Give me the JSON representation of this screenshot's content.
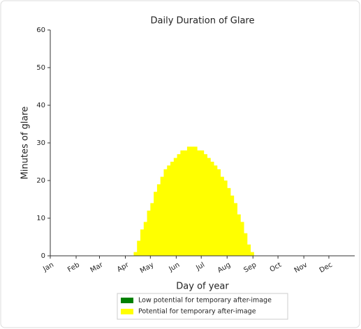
{
  "chart_data": {
    "type": "histogram",
    "title": "Daily Duration of Glare",
    "xlabel": "Day of year",
    "ylabel": "Minutes of glare",
    "xlim": [
      0,
      365
    ],
    "ylim": [
      0,
      60
    ],
    "yticks": [
      0,
      10,
      20,
      30,
      40,
      50,
      60
    ],
    "xticks": [
      {
        "value": 0,
        "label": "Jan"
      },
      {
        "value": 31,
        "label": "Feb"
      },
      {
        "value": 59,
        "label": "Mar"
      },
      {
        "value": 90,
        "label": "Apr"
      },
      {
        "value": 120,
        "label": "May"
      },
      {
        "value": 151,
        "label": "Jun"
      },
      {
        "value": 181,
        "label": "Jul"
      },
      {
        "value": 212,
        "label": "Aug"
      },
      {
        "value": 243,
        "label": "Sep"
      },
      {
        "value": 273,
        "label": "Oct"
      },
      {
        "value": 304,
        "label": "Nov"
      },
      {
        "value": 334,
        "label": "Dec"
      }
    ],
    "bins": [
      100,
      104,
      108,
      112,
      116,
      120,
      124,
      128,
      132,
      136,
      140,
      144,
      148,
      152,
      156,
      160,
      164,
      168,
      172,
      176,
      180,
      184,
      188,
      192,
      196,
      200,
      204,
      208,
      212,
      216,
      220,
      224,
      228,
      232,
      236,
      240,
      244
    ],
    "series": [
      {
        "name": "Low potential for temporary after-image",
        "color": "#008000",
        "values": [
          0,
          0,
          0,
          0,
          0,
          0,
          0,
          0,
          0,
          0,
          0,
          0,
          0,
          0,
          0,
          0,
          0,
          0,
          0,
          0,
          0,
          0,
          0,
          0,
          0,
          0,
          0,
          0,
          0,
          0,
          0,
          0,
          0,
          0,
          0,
          0
        ]
      },
      {
        "name": "Potential for temporary after-image",
        "color": "#ffff00",
        "values": [
          1,
          4,
          7,
          9,
          12,
          14,
          17,
          19,
          21,
          23,
          24,
          25,
          26,
          27,
          28,
          28,
          29,
          29,
          29,
          28,
          28,
          27,
          26,
          25,
          24,
          23,
          21,
          20,
          18,
          16,
          14,
          11,
          9,
          6,
          3,
          1
        ]
      }
    ],
    "legend": "lower center"
  }
}
